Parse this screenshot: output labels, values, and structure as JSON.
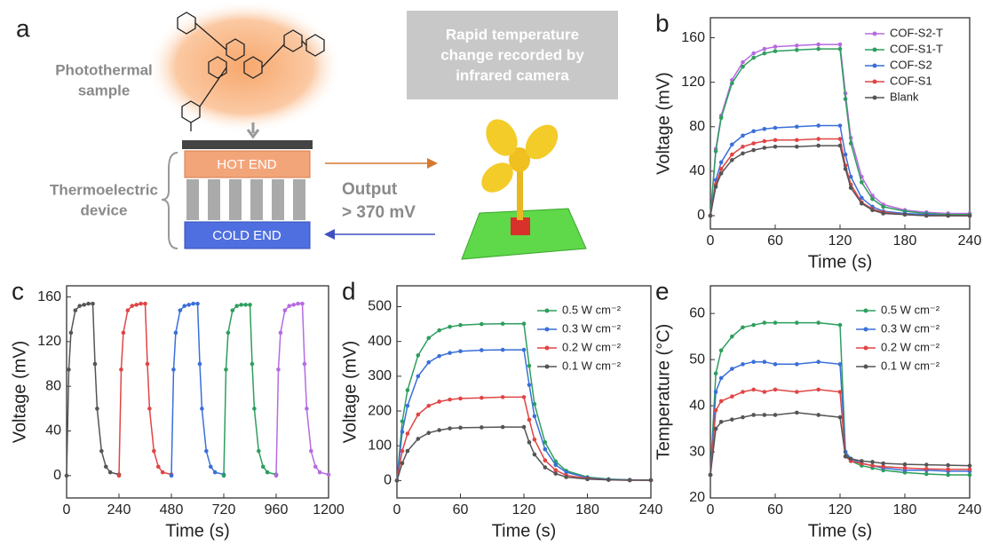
{
  "panel_a": {
    "label": "a",
    "sample_label": [
      "Photothermal",
      "sample"
    ],
    "device_label": [
      "Thermoelectric",
      "device"
    ],
    "hot_end": "HOT END",
    "cold_end": "COLD END",
    "output": [
      "Output",
      "> 370 mV"
    ],
    "camera_note": [
      "Rapid temperature",
      "change recorded by",
      "infrared camera"
    ]
  },
  "chart_data": [
    {
      "type": "line",
      "panel": "b",
      "xlabel": "Time (s)",
      "ylabel": "Voltage (mV)",
      "legend": "upper right",
      "x": [
        0,
        5,
        10,
        20,
        30,
        40,
        50,
        60,
        80,
        100,
        120,
        125,
        130,
        140,
        150,
        160,
        180,
        200,
        220,
        240
      ],
      "xlim": [
        0,
        240
      ],
      "xticks": [
        0,
        60,
        120,
        180,
        240
      ],
      "ylim": [
        -12,
        178
      ],
      "yticks": [
        0,
        40,
        80,
        120,
        160
      ],
      "series": [
        {
          "name": "COF-S2-T",
          "color": "#b56be0",
          "values": [
            0,
            60,
            90,
            122,
            138,
            146,
            150,
            152,
            153,
            154,
            154,
            110,
            70,
            35,
            18,
            10,
            5,
            3,
            2,
            2
          ]
        },
        {
          "name": "COF-S1-T",
          "color": "#2e9e5e",
          "values": [
            0,
            58,
            88,
            119,
            134,
            142,
            146,
            148,
            149,
            150,
            150,
            105,
            65,
            30,
            15,
            8,
            4,
            2,
            1,
            1
          ]
        },
        {
          "name": "COF-S2",
          "color": "#3a6fd8",
          "values": [
            0,
            32,
            48,
            64,
            72,
            76,
            78,
            79,
            80,
            81,
            81,
            55,
            35,
            16,
            8,
            4,
            2,
            1,
            0,
            0
          ]
        },
        {
          "name": "COF-S1",
          "color": "#e04545",
          "values": [
            0,
            28,
            42,
            55,
            62,
            65,
            67,
            68,
            68,
            69,
            69,
            45,
            28,
            12,
            6,
            3,
            1,
            0,
            0,
            0
          ]
        },
        {
          "name": "Blank",
          "color": "#555555",
          "values": [
            0,
            26,
            38,
            50,
            56,
            59,
            61,
            62,
            62,
            63,
            63,
            42,
            25,
            11,
            5,
            2,
            1,
            0,
            0,
            0
          ]
        }
      ]
    },
    {
      "type": "line",
      "panel": "c",
      "xlabel": "Time (s)",
      "ylabel": "Voltage (mV)",
      "xlim": [
        0,
        1200
      ],
      "xticks": [
        0,
        240,
        480,
        720,
        960,
        1200
      ],
      "ylim": [
        -20,
        170
      ],
      "yticks": [
        0,
        40,
        80,
        120,
        160
      ],
      "series": [
        {
          "color": "#555555",
          "x": [
            0,
            10,
            20,
            40,
            60,
            80,
            100,
            120,
            130,
            140,
            160,
            180,
            200,
            240
          ],
          "values": [
            0,
            95,
            128,
            148,
            152,
            153,
            154,
            154,
            100,
            60,
            22,
            8,
            3,
            1
          ]
        },
        {
          "color": "#e04545",
          "x": [
            240,
            250,
            260,
            280,
            300,
            320,
            340,
            360,
            370,
            380,
            400,
            420,
            440,
            480
          ],
          "values": [
            0,
            95,
            128,
            148,
            152,
            153,
            154,
            154,
            100,
            60,
            22,
            8,
            3,
            1
          ]
        },
        {
          "color": "#3a6fd8",
          "x": [
            480,
            490,
            500,
            520,
            540,
            560,
            580,
            600,
            610,
            620,
            640,
            660,
            680,
            720
          ],
          "values": [
            0,
            95,
            128,
            148,
            152,
            153,
            154,
            154,
            100,
            60,
            22,
            8,
            3,
            1
          ]
        },
        {
          "color": "#2e9e5e",
          "x": [
            720,
            730,
            740,
            760,
            780,
            800,
            820,
            840,
            850,
            860,
            880,
            900,
            920,
            960
          ],
          "values": [
            0,
            95,
            128,
            148,
            152,
            153,
            153,
            153,
            100,
            60,
            22,
            8,
            3,
            1
          ]
        },
        {
          "color": "#b56be0",
          "x": [
            960,
            970,
            980,
            1000,
            1020,
            1040,
            1060,
            1080,
            1090,
            1100,
            1120,
            1140,
            1160,
            1200
          ],
          "values": [
            0,
            95,
            128,
            148,
            152,
            153,
            154,
            154,
            100,
            60,
            22,
            8,
            3,
            1
          ]
        }
      ]
    },
    {
      "type": "line",
      "panel": "d",
      "xlabel": "Time (s)",
      "ylabel": "Voltage (mV)",
      "legend": "upper right",
      "x": [
        0,
        5,
        10,
        20,
        30,
        40,
        50,
        60,
        80,
        100,
        120,
        125,
        130,
        140,
        150,
        160,
        180,
        200,
        220,
        240
      ],
      "xlim": [
        0,
        240
      ],
      "xticks": [
        0,
        60,
        120,
        180,
        240
      ],
      "ylim": [
        -50,
        560
      ],
      "yticks": [
        0,
        100,
        200,
        300,
        400,
        500
      ],
      "series": [
        {
          "name": "0.5 W cm⁻²",
          "color": "#2e9e5e",
          "values": [
            0,
            170,
            260,
            360,
            410,
            432,
            442,
            447,
            450,
            451,
            451,
            330,
            220,
            110,
            55,
            28,
            10,
            4,
            2,
            1
          ]
        },
        {
          "name": "0.3 W cm⁻²",
          "color": "#3a6fd8",
          "values": [
            0,
            140,
            215,
            300,
            340,
            358,
            367,
            372,
            375,
            376,
            376,
            275,
            185,
            90,
            45,
            24,
            8,
            3,
            2,
            1
          ]
        },
        {
          "name": "0.2 W cm⁻²",
          "color": "#e04545",
          "values": [
            0,
            85,
            135,
            190,
            215,
            227,
            233,
            236,
            238,
            240,
            240,
            175,
            118,
            58,
            30,
            15,
            6,
            2,
            1,
            1
          ]
        },
        {
          "name": "0.1 W cm⁻²",
          "color": "#555555",
          "values": [
            0,
            50,
            85,
            120,
            137,
            145,
            150,
            152,
            153,
            154,
            154,
            110,
            75,
            38,
            20,
            10,
            4,
            2,
            1,
            1
          ]
        }
      ]
    },
    {
      "type": "line",
      "panel": "e",
      "xlabel": "Time (s)",
      "ylabel": "Temperature (°C)",
      "legend": "upper right",
      "x": [
        0,
        5,
        10,
        20,
        30,
        40,
        50,
        60,
        80,
        100,
        120,
        125,
        130,
        140,
        150,
        160,
        180,
        200,
        220,
        240
      ],
      "xlim": [
        0,
        240
      ],
      "xticks": [
        0,
        60,
        120,
        180,
        240
      ],
      "ylim": [
        20,
        66
      ],
      "yticks": [
        20,
        30,
        40,
        50,
        60
      ],
      "series": [
        {
          "name": "0.5 W cm⁻²",
          "color": "#2e9e5e",
          "values": [
            25,
            47,
            52,
            55,
            57,
            57.5,
            58,
            58,
            58,
            58,
            57.5,
            30,
            28,
            27,
            26.5,
            26,
            25.5,
            25.2,
            25,
            25
          ]
        },
        {
          "name": "0.3 W cm⁻²",
          "color": "#3a6fd8",
          "values": [
            25,
            43,
            46,
            48,
            49,
            49.5,
            49.5,
            49,
            49,
            49.5,
            49,
            30,
            28.5,
            27.5,
            27,
            26.5,
            26,
            26,
            25.8,
            25.8
          ]
        },
        {
          "name": "0.2 W cm⁻²",
          "color": "#e04545",
          "values": [
            25,
            39,
            41,
            42,
            43,
            43.5,
            43,
            43.5,
            43,
            43.5,
            43,
            29,
            28,
            27.5,
            27,
            26.8,
            26.5,
            26.3,
            26.2,
            26.2
          ]
        },
        {
          "name": "0.1 W cm⁻²",
          "color": "#555555",
          "values": [
            25,
            35,
            36.5,
            37,
            37.5,
            38,
            38,
            38,
            38.5,
            38,
            37.5,
            29,
            28.5,
            28,
            27.8,
            27.5,
            27.3,
            27.2,
            27.1,
            27
          ]
        }
      ]
    }
  ]
}
